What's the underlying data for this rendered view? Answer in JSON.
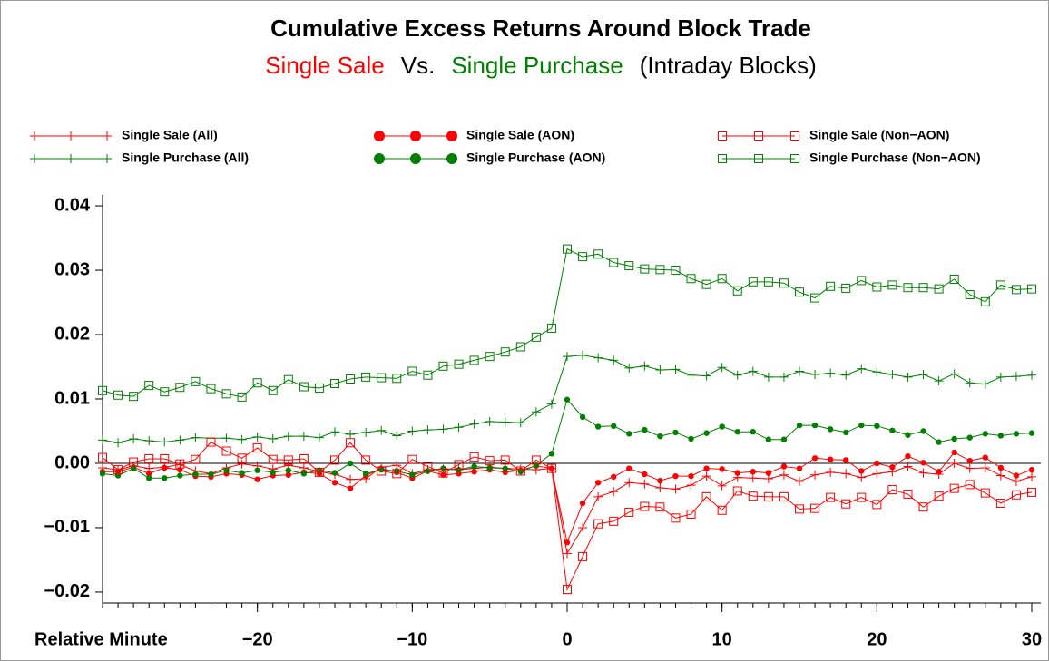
{
  "chart_data": {
    "type": "line",
    "title": "Cumulative Excess Returns Around Block Trade",
    "subtitle_parts": [
      {
        "text": "Single Sale",
        "color": "#ff0000"
      },
      {
        "text": "Vs.",
        "color": "#000000"
      },
      {
        "text": "Single Purchase",
        "color": "#008000"
      },
      {
        "text": "(Intraday Blocks)",
        "color": "#000000"
      }
    ],
    "x_label": "Relative Minute",
    "xlim": [
      -30,
      30
    ],
    "xticks": [
      {
        "value": -20,
        "label": "−20"
      },
      {
        "value": -10,
        "label": "−10"
      },
      0,
      10,
      20,
      30
    ],
    "ylim": [
      -0.0217,
      0.0417
    ],
    "yticks": [
      {
        "value": -0.02,
        "label": "−0.02"
      },
      {
        "value": -0.01,
        "label": "−0.01"
      },
      {
        "value": 0,
        "label": "0.00"
      },
      {
        "value": 0.01,
        "label": "0.01"
      },
      {
        "value": 0.02,
        "label": "0.02"
      },
      {
        "value": 0.03,
        "label": "0.03"
      },
      0.04
    ],
    "reference_line": 0,
    "x": [
      -30,
      -29,
      -28,
      -27,
      -26,
      -25,
      -24,
      -23,
      -22,
      -21,
      -20,
      -19,
      -18,
      -17,
      -16,
      -15,
      -14,
      -13,
      -12,
      -11,
      -10,
      -9,
      -8,
      -7,
      -6,
      -5,
      -4,
      -3,
      -2,
      -1,
      0,
      1,
      2,
      3,
      4,
      5,
      6,
      7,
      8,
      9,
      10,
      11,
      12,
      13,
      14,
      15,
      16,
      17,
      18,
      19,
      20,
      21,
      22,
      23,
      24,
      25,
      26,
      27,
      28,
      29,
      30
    ],
    "series": [
      {
        "name": "Single Sale (All)",
        "color": "#ff0000",
        "marker": "plus",
        "values": [
          -0.0007,
          -0.001,
          -0.0004,
          -0.0008,
          -0.0006,
          -0.0002,
          -0.0012,
          -0.0016,
          -0.0007,
          -0.0001,
          -0.0004,
          -0.0009,
          -0.0003,
          -0.0007,
          -0.0013,
          -0.0017,
          -0.0025,
          -0.0024,
          -0.0006,
          -0.0003,
          -0.0016,
          -0.001,
          -0.0009,
          -0.001,
          -0.0008,
          -0.0006,
          -0.0008,
          -0.0009,
          -0.001,
          -0.0008,
          -0.014,
          -0.01,
          -0.0052,
          -0.0044,
          -0.003,
          -0.0032,
          -0.0038,
          -0.004,
          -0.0034,
          -0.002,
          -0.0035,
          -0.0022,
          -0.0023,
          -0.0024,
          -0.0018,
          -0.0028,
          -0.0018,
          -0.0014,
          -0.0016,
          -0.0022,
          -0.0016,
          -0.0013,
          -0.0005,
          -0.0015,
          -0.0017,
          0.0,
          -0.0008,
          -0.0007,
          -0.0019,
          -0.0028,
          -0.0021
        ]
      },
      {
        "name": "Single Purchase (All)",
        "color": "#008000",
        "marker": "plus",
        "values": [
          0.0036,
          0.0032,
          0.0038,
          0.0035,
          0.0033,
          0.0036,
          0.004,
          0.0039,
          0.0039,
          0.0037,
          0.0041,
          0.0038,
          0.0042,
          0.0042,
          0.004,
          0.0049,
          0.0045,
          0.0048,
          0.0051,
          0.0043,
          0.005,
          0.0052,
          0.0053,
          0.0056,
          0.0061,
          0.0065,
          0.0064,
          0.0063,
          0.008,
          0.0092,
          0.0166,
          0.0168,
          0.0164,
          0.016,
          0.0148,
          0.0151,
          0.0145,
          0.0146,
          0.0137,
          0.0136,
          0.0149,
          0.0137,
          0.0143,
          0.0134,
          0.0134,
          0.0143,
          0.0138,
          0.014,
          0.0137,
          0.0147,
          0.0142,
          0.0138,
          0.0134,
          0.0138,
          0.0128,
          0.0139,
          0.0125,
          0.0123,
          0.0134,
          0.0135,
          0.0137
        ]
      },
      {
        "name": "Single Sale (AON)",
        "color": "#ff0000",
        "marker": "dot",
        "values": [
          -0.0013,
          -0.0013,
          -0.0006,
          -0.0016,
          -0.0007,
          -0.001,
          -0.002,
          -0.0021,
          -0.0016,
          -0.0018,
          -0.0025,
          -0.0019,
          -0.0018,
          -0.0014,
          -0.0016,
          -0.003,
          -0.0039,
          -0.0019,
          -0.0008,
          -0.0014,
          -0.0023,
          -0.0012,
          -0.0018,
          -0.0016,
          -0.0013,
          -0.001,
          -0.0014,
          -0.0011,
          -0.0004,
          -0.0008,
          -0.0123,
          -0.0062,
          -0.003,
          -0.0021,
          -0.0008,
          -0.0017,
          -0.0027,
          -0.002,
          -0.002,
          -0.0008,
          -0.0009,
          -0.0015,
          -0.0013,
          -0.0015,
          -0.0005,
          -0.0008,
          0.0008,
          0.0006,
          0.0005,
          -0.0012,
          0.0,
          -0.0006,
          0.0011,
          0.0001,
          -0.0013,
          0.0017,
          0.0004,
          0.0009,
          -0.0007,
          -0.0019,
          -0.001
        ]
      },
      {
        "name": "Single Purchase (AON)",
        "color": "#008000",
        "marker": "dot",
        "values": [
          -0.0016,
          -0.0019,
          -0.0008,
          -0.0023,
          -0.0023,
          -0.0019,
          -0.0017,
          -0.0017,
          -0.0011,
          -0.0015,
          -0.0011,
          -0.0014,
          -0.0011,
          -0.0016,
          -0.0011,
          -0.0015,
          0.0,
          -0.0016,
          -0.001,
          -0.0012,
          -0.0018,
          -0.0012,
          -0.0008,
          -0.001,
          -0.0005,
          -0.0007,
          -0.0008,
          -0.0013,
          -0.0003,
          0.0015,
          0.0099,
          0.0072,
          0.0057,
          0.0058,
          0.0046,
          0.0052,
          0.0042,
          0.0048,
          0.0038,
          0.0047,
          0.0057,
          0.0049,
          0.0049,
          0.0037,
          0.0037,
          0.0059,
          0.0059,
          0.0053,
          0.0048,
          0.0059,
          0.0058,
          0.0051,
          0.0044,
          0.005,
          0.0033,
          0.0038,
          0.004,
          0.0046,
          0.0043,
          0.0046,
          0.0047
        ]
      },
      {
        "name": "Single Sale (Non−AON)",
        "color": "#ff0000",
        "marker": "square",
        "values": [
          0.0009,
          -0.001,
          0.0002,
          0.0007,
          0.0007,
          -0.0001,
          0.0006,
          0.0033,
          0.0019,
          0.0008,
          0.0024,
          0.0006,
          0.0005,
          0.0007,
          -0.0014,
          0.0005,
          0.0032,
          0.0005,
          -0.0012,
          -0.0016,
          0.0006,
          -0.0005,
          -0.0015,
          -0.0002,
          0.001,
          0.0004,
          0.0005,
          -0.0012,
          0.0005,
          -0.0008,
          -0.0196,
          -0.0145,
          -0.0094,
          -0.009,
          -0.0076,
          -0.0067,
          -0.0068,
          -0.0085,
          -0.0079,
          -0.0052,
          -0.0073,
          -0.0043,
          -0.0051,
          -0.0052,
          -0.0052,
          -0.0071,
          -0.007,
          -0.0053,
          -0.0063,
          -0.0053,
          -0.0064,
          -0.0041,
          -0.0048,
          -0.0068,
          -0.0051,
          -0.0039,
          -0.0033,
          -0.0046,
          -0.0062,
          -0.0049,
          -0.0045
        ]
      },
      {
        "name": "Single Purchase (Non−AON)",
        "color": "#008000",
        "marker": "square",
        "values": [
          0.0113,
          0.0106,
          0.0104,
          0.0121,
          0.0111,
          0.0118,
          0.0127,
          0.0116,
          0.0108,
          0.0103,
          0.0125,
          0.0113,
          0.013,
          0.0119,
          0.0117,
          0.0124,
          0.0131,
          0.0134,
          0.0133,
          0.0132,
          0.0143,
          0.0137,
          0.0151,
          0.0154,
          0.016,
          0.0166,
          0.0173,
          0.0181,
          0.0196,
          0.021,
          0.0333,
          0.0321,
          0.0325,
          0.0312,
          0.0307,
          0.0302,
          0.0301,
          0.03,
          0.0287,
          0.0278,
          0.0287,
          0.0268,
          0.0282,
          0.0282,
          0.028,
          0.0266,
          0.0257,
          0.0275,
          0.0272,
          0.0284,
          0.0274,
          0.0277,
          0.0273,
          0.0273,
          0.0271,
          0.0286,
          0.0262,
          0.0251,
          0.0277,
          0.027,
          0.0271
        ]
      }
    ]
  }
}
